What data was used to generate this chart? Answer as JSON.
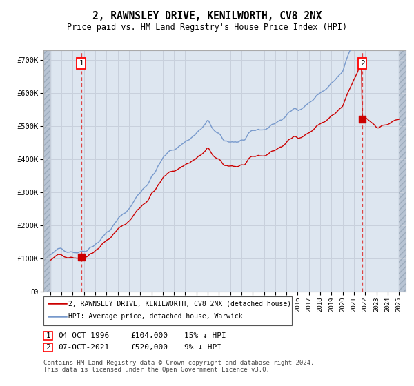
{
  "title": "2, RAWNSLEY DRIVE, KENILWORTH, CV8 2NX",
  "subtitle": "Price paid vs. HM Land Registry's House Price Index (HPI)",
  "ylim": [
    0,
    730000
  ],
  "yticks": [
    0,
    100000,
    200000,
    300000,
    400000,
    500000,
    600000,
    700000
  ],
  "ytick_labels": [
    "£0",
    "£100K",
    "£200K",
    "£300K",
    "£400K",
    "£500K",
    "£600K",
    "£700K"
  ],
  "purchase1": {
    "date_num": 1996.75,
    "price": 104000,
    "label": "1"
  },
  "purchase2": {
    "date_num": 2021.75,
    "price": 520000,
    "label": "2"
  },
  "legend_line1": "2, RAWNSLEY DRIVE, KENILWORTH, CV8 2NX (detached house)",
  "legend_line2": "HPI: Average price, detached house, Warwick",
  "table_row1": [
    "1",
    "04-OCT-1996",
    "£104,000",
    "15% ↓ HPI"
  ],
  "table_row2": [
    "2",
    "07-OCT-2021",
    "£520,000",
    "9% ↓ HPI"
  ],
  "footnote": "Contains HM Land Registry data © Crown copyright and database right 2024.\nThis data is licensed under the Open Government Licence v3.0.",
  "hpi_color": "#7799cc",
  "price_color": "#cc0000",
  "grid_color": "#c8d0dc",
  "bg_plot": "#dde6f0",
  "xstart": 1994.0,
  "xend": 2025.0
}
